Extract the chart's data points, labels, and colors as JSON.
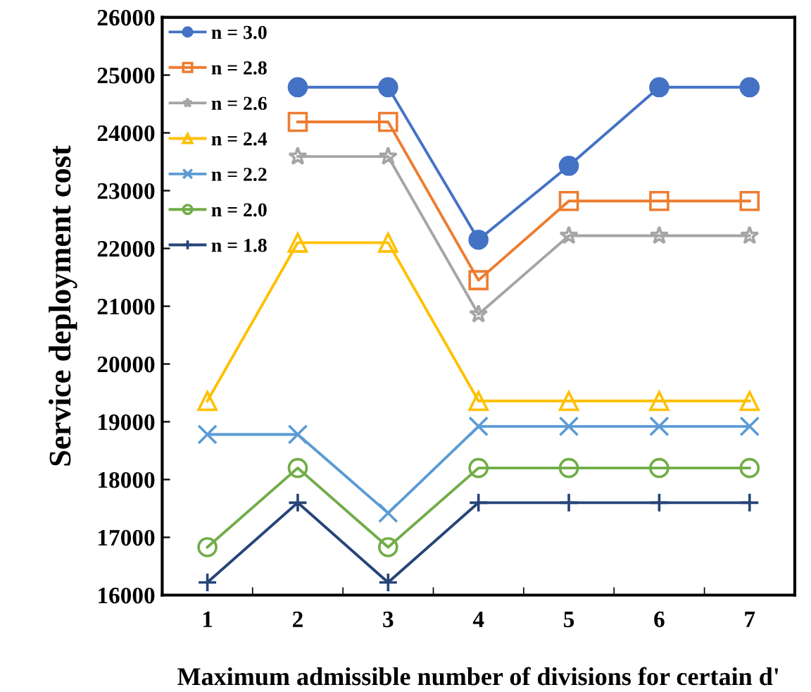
{
  "chart_data": {
    "type": "line",
    "xlabel": "Maximum admissible number of divisions for certain d'",
    "ylabel": "Service deployment cost",
    "categories": [
      "1",
      "2",
      "3",
      "4",
      "5",
      "6",
      "7"
    ],
    "series": [
      {
        "name": "n = 3.0",
        "color": "#4472c4",
        "marker": "circle",
        "values": [
          null,
          24790,
          24790,
          22150,
          23430,
          24790,
          24790
        ]
      },
      {
        "name": "n = 2.8",
        "color": "#ed7d31",
        "marker": "square",
        "values": [
          null,
          24190,
          24190,
          21450,
          22820,
          22820,
          22820
        ]
      },
      {
        "name": "n = 2.6",
        "color": "#a5a5a5",
        "marker": "star",
        "values": [
          null,
          23590,
          23590,
          20860,
          22220,
          22220,
          22220
        ]
      },
      {
        "name": "n = 2.4",
        "color": "#ffc000",
        "marker": "triangle",
        "values": [
          19360,
          22100,
          22100,
          19360,
          19360,
          19360,
          19360
        ]
      },
      {
        "name": "n = 2.2",
        "color": "#5b9bd5",
        "marker": "cross",
        "values": [
          18780,
          18780,
          17420,
          18920,
          18920,
          18920,
          18920
        ]
      },
      {
        "name": "n = 2.0",
        "color": "#70ad47",
        "marker": "circle",
        "values": [
          16830,
          18200,
          16830,
          18200,
          18200,
          18200,
          18200
        ]
      },
      {
        "name": "n = 1.8",
        "color": "#264478",
        "marker": "plus",
        "values": [
          16220,
          17600,
          16220,
          17600,
          17600,
          17600,
          17600
        ]
      }
    ],
    "ylim": [
      16000,
      26000
    ],
    "yticks": [
      16000,
      17000,
      18000,
      19000,
      20000,
      21000,
      22000,
      23000,
      24000,
      25000,
      26000
    ],
    "grid": false,
    "legend": "top left",
    "line_style": "solid"
  }
}
